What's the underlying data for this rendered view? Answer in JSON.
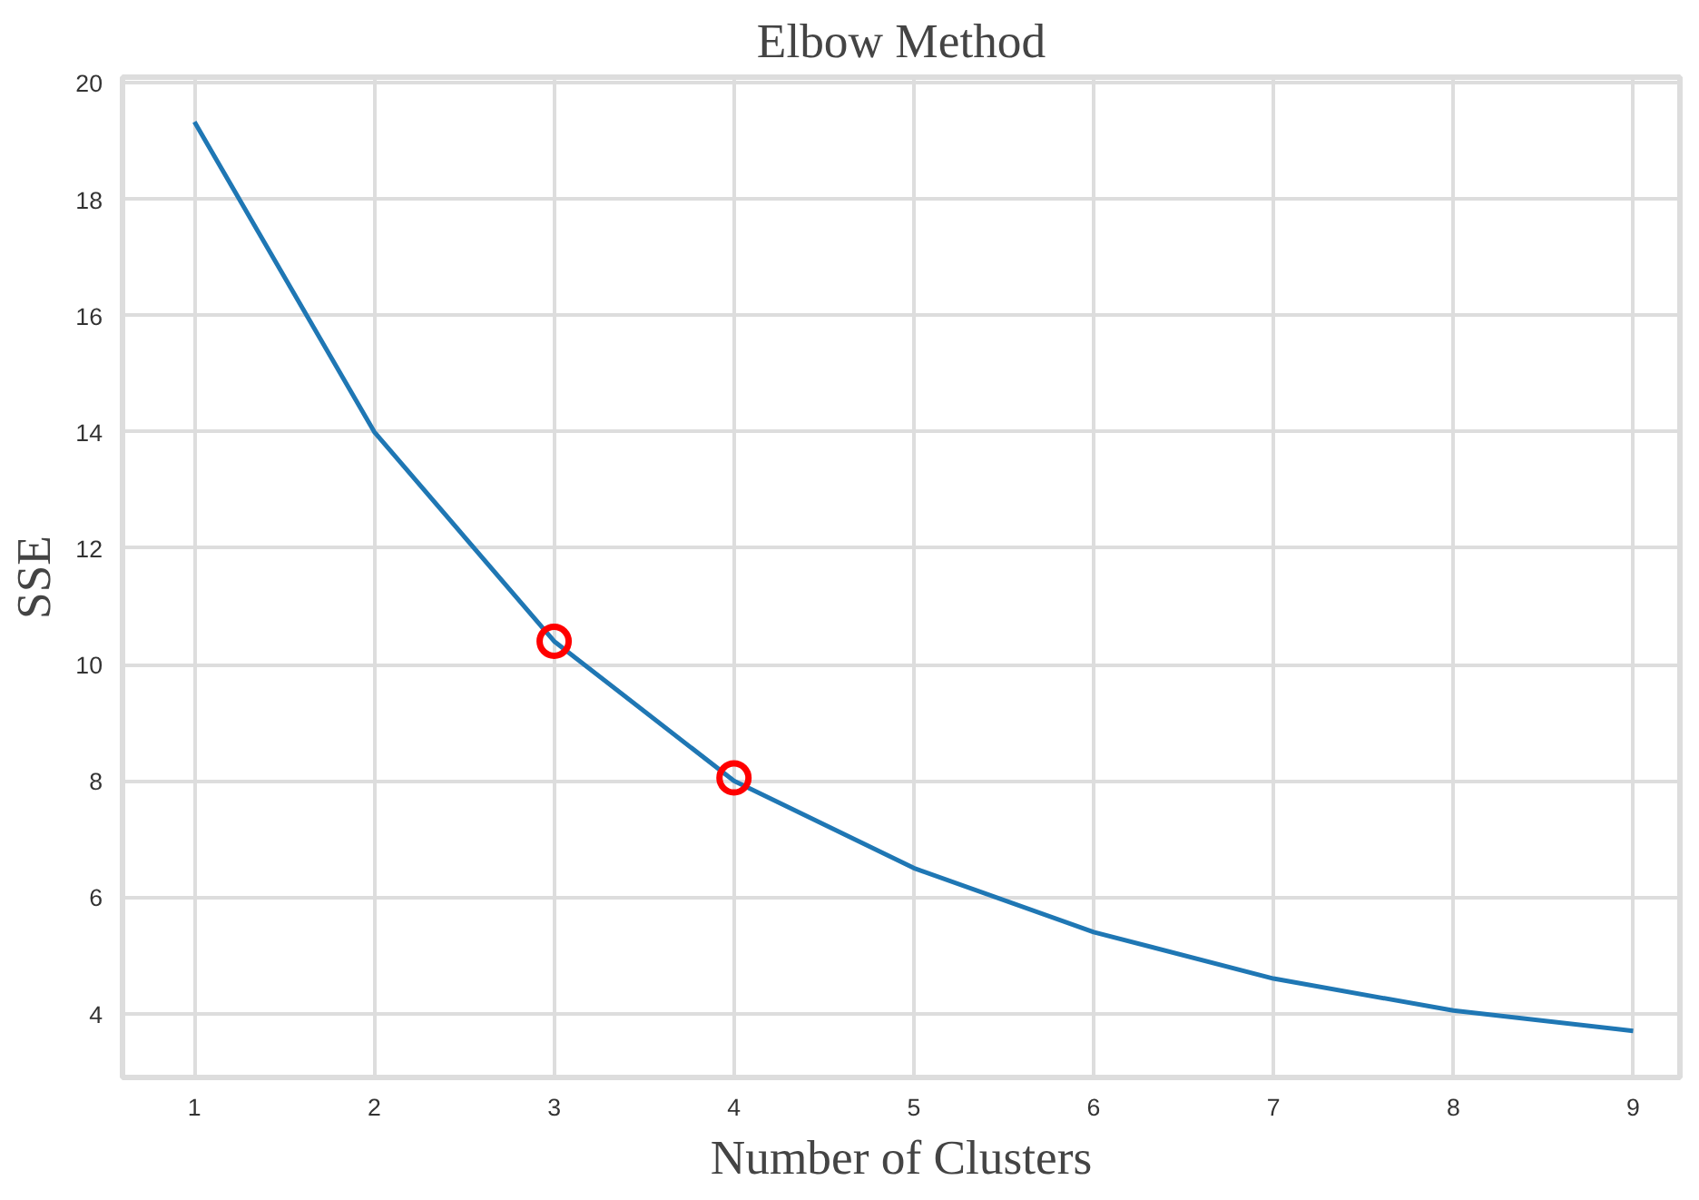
{
  "chart_data": {
    "type": "line",
    "title": "Elbow Method",
    "xlabel": "Number of Clusters",
    "ylabel": "SSE",
    "x": [
      1,
      2,
      3,
      4,
      5,
      6,
      7,
      8,
      9
    ],
    "series": [
      {
        "color": "#1f77b4",
        "values": [
          19.33,
          14.0,
          10.4,
          8.0,
          6.5,
          5.4,
          4.6,
          4.05,
          3.7
        ]
      },
      {
        "type": "scatter",
        "x": [
          3,
          4
        ],
        "color": "#ff0000",
        "marker": "circle",
        "values": [
          10.4,
          8.05
        ]
      }
    ],
    "xlim": [
      0.6,
      9.26
    ],
    "ylim": [
      2.9,
      20.1
    ],
    "xticks": [
      1,
      2,
      3,
      4,
      5,
      6,
      7,
      8,
      9
    ],
    "yticks": [
      4,
      6,
      8,
      10,
      12,
      14,
      16,
      18,
      20
    ],
    "grid": true
  }
}
